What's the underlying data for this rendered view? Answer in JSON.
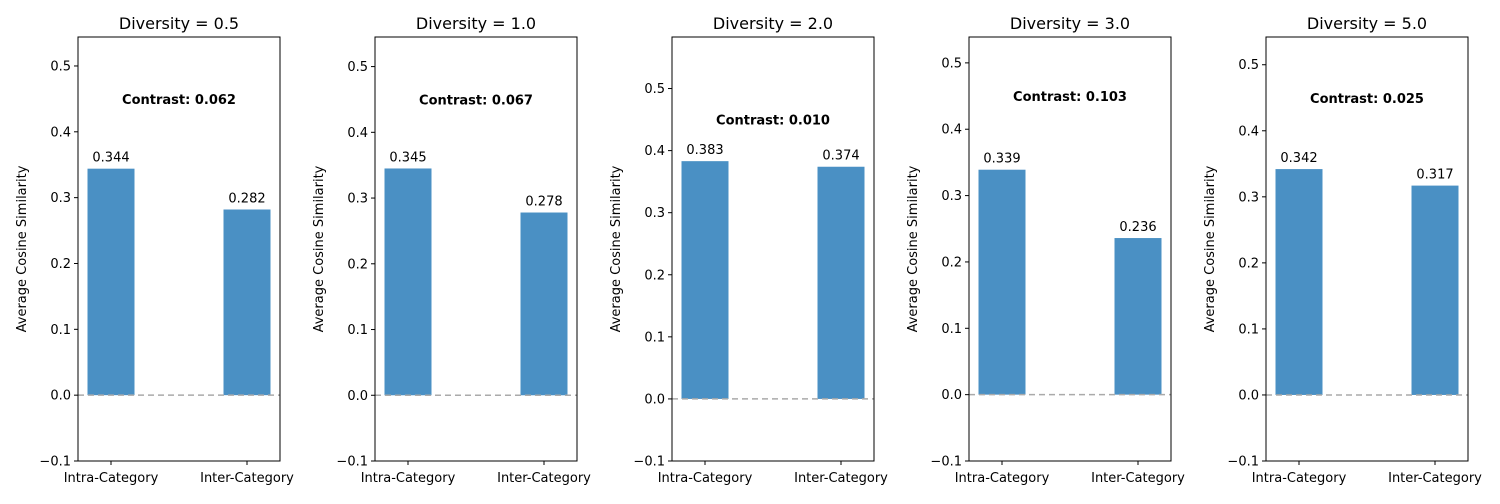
{
  "chart_data": [
    {
      "type": "bar",
      "title": "Diversity = 0.5",
      "ylabel": "Average Cosine Similarity",
      "xlabel": "",
      "categories": [
        "Intra-Category",
        "Inter-Category"
      ],
      "values": [
        0.344,
        0.282
      ],
      "value_labels": [
        "0.344",
        "0.282"
      ],
      "annotation": "Contrast: 0.062",
      "ylim": [
        -0.1,
        0.544
      ],
      "yticks": [
        -0.1,
        0.0,
        0.1,
        0.2,
        0.3,
        0.4,
        0.5
      ],
      "ytick_labels": [
        "−0.1",
        "0.0",
        "0.1",
        "0.2",
        "0.3",
        "0.4",
        "0.5"
      ],
      "zero_line": true,
      "grid": false
    },
    {
      "type": "bar",
      "title": "Diversity = 1.0",
      "ylabel": "Average Cosine Similarity",
      "xlabel": "",
      "categories": [
        "Intra-Category",
        "Inter-Category"
      ],
      "values": [
        0.345,
        0.278
      ],
      "value_labels": [
        "0.345",
        "0.278"
      ],
      "annotation": "Contrast: 0.067",
      "ylim": [
        -0.1,
        0.545
      ],
      "yticks": [
        -0.1,
        0.0,
        0.1,
        0.2,
        0.3,
        0.4,
        0.5
      ],
      "ytick_labels": [
        "−0.1",
        "0.0",
        "0.1",
        "0.2",
        "0.3",
        "0.4",
        "0.5"
      ],
      "zero_line": true,
      "grid": false
    },
    {
      "type": "bar",
      "title": "Diversity = 2.0",
      "ylabel": "Average Cosine Similarity",
      "xlabel": "",
      "categories": [
        "Intra-Category",
        "Inter-Category"
      ],
      "values": [
        0.383,
        0.374
      ],
      "value_labels": [
        "0.383",
        "0.374"
      ],
      "annotation": "Contrast: 0.010",
      "ylim": [
        -0.1,
        0.583
      ],
      "yticks": [
        -0.1,
        0.0,
        0.1,
        0.2,
        0.3,
        0.4,
        0.5
      ],
      "ytick_labels": [
        "−0.1",
        "0.0",
        "0.1",
        "0.2",
        "0.3",
        "0.4",
        "0.5"
      ],
      "zero_line": true,
      "grid": false
    },
    {
      "type": "bar",
      "title": "Diversity = 3.0",
      "ylabel": "Average Cosine Similarity",
      "xlabel": "",
      "categories": [
        "Intra-Category",
        "Inter-Category"
      ],
      "values": [
        0.339,
        0.236
      ],
      "value_labels": [
        "0.339",
        "0.236"
      ],
      "annotation": "Contrast: 0.103",
      "ylim": [
        -0.1,
        0.539
      ],
      "yticks": [
        -0.1,
        0.0,
        0.1,
        0.2,
        0.3,
        0.4,
        0.5
      ],
      "ytick_labels": [
        "−0.1",
        "0.0",
        "0.1",
        "0.2",
        "0.3",
        "0.4",
        "0.5"
      ],
      "zero_line": true,
      "grid": false
    },
    {
      "type": "bar",
      "title": "Diversity = 5.0",
      "ylabel": "Average Cosine Similarity",
      "xlabel": "",
      "categories": [
        "Intra-Category",
        "Inter-Category"
      ],
      "values": [
        0.342,
        0.317
      ],
      "value_labels": [
        "0.342",
        "0.317"
      ],
      "annotation": "Contrast: 0.025",
      "ylim": [
        -0.1,
        0.542
      ],
      "yticks": [
        -0.1,
        0.0,
        0.1,
        0.2,
        0.3,
        0.4,
        0.5
      ],
      "ytick_labels": [
        "−0.1",
        "0.0",
        "0.1",
        "0.2",
        "0.3",
        "0.4",
        "0.5"
      ],
      "zero_line": true,
      "grid": false
    }
  ],
  "colors": {
    "bar": "#4a90c4",
    "zero_line": "#aaaaaa",
    "axis": "#000000"
  }
}
